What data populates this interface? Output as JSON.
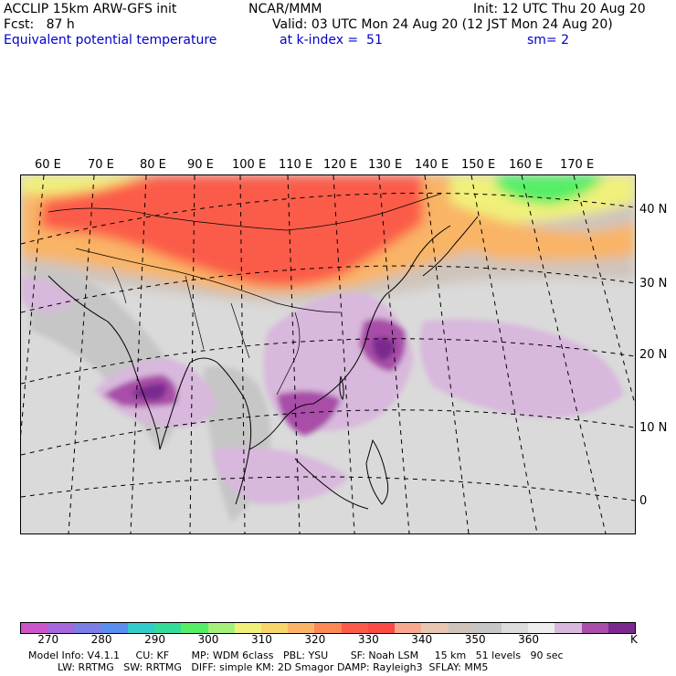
{
  "header": {
    "model": "ACCLIP 15km ARW-GFS init",
    "org": "NCAR/MMM",
    "init": "Init: 12 UTC Thu 20 Aug 20",
    "fcst": "Fcst:   87 h",
    "valid": "Valid: 03 UTC Mon 24 Aug 20 (12 JST Mon 24 Aug 20)",
    "field": "Equivalent potential temperature",
    "level": "at k-index =  51",
    "smooth": "sm= 2"
  },
  "longitude_labels": [
    "60 E",
    "70 E",
    "80 E",
    "90 E",
    "100 E",
    "110 E",
    "120 E",
    "130 E",
    "140 E",
    "150 E",
    "160 E",
    "170 E"
  ],
  "latitude_labels": [
    "40 N",
    "30 N",
    "20 N",
    "10 N",
    "0"
  ],
  "colorbar": {
    "colors": [
      "#cc55cc",
      "#a866dd",
      "#7d7de6",
      "#5a8ff0",
      "#33cccc",
      "#33dd99",
      "#55ee66",
      "#a6f07a",
      "#f0f07a",
      "#f7d66b",
      "#f9b466",
      "#fb8855",
      "#fb5c4a",
      "#fa4b45",
      "#f7a98f",
      "#e6c6b0",
      "#cfc4bb",
      "#c6c6c6",
      "#dcdcdc",
      "#eeeeee",
      "#d8b8dc",
      "#a84ea8",
      "#7a2a8e"
    ],
    "tick_labels": [
      "270",
      "280",
      "290",
      "300",
      "310",
      "320",
      "330",
      "340",
      "350",
      "360"
    ],
    "unit": "K"
  },
  "map_colors": {
    "ocean": "#dadada",
    "warm": "#fb5c4a",
    "orange": "#f9b466",
    "yellow": "#f0f07a",
    "green": "#55ee66",
    "tan": "#cfc4bb",
    "lilac": "#d8b8dc",
    "purple": "#a84ea8",
    "dark_purple": "#7a2a8e",
    "land_grey": "#c6c6c6"
  },
  "info": {
    "line1": "Model Info: V4.1.1     CU: KF       MP: WDM 6class   PBL: YSU       SF: Noah LSM     15 km   51 levels   90 sec",
    "line2": "LW: RRTMG   SW: RRTMG   DIFF: simple KM: 2D Smagor DAMP: Rayleigh3  SFLAY: MM5"
  }
}
